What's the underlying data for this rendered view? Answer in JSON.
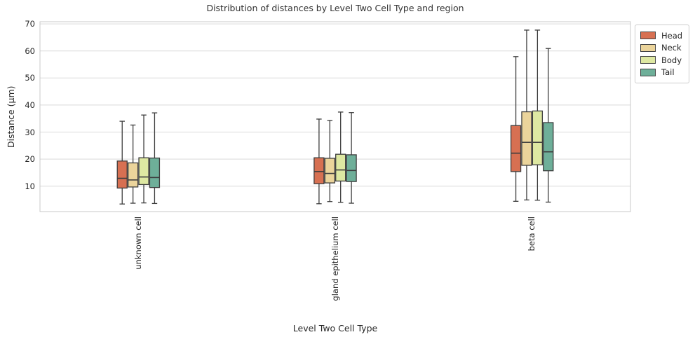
{
  "chart_data": {
    "type": "box",
    "title": "Distribution of distances by Level Two Cell Type and region",
    "xlabel": "Level Two Cell Type",
    "ylabel": "Distance (μm)",
    "categories": [
      "unknown cell",
      "gland epithelium cell",
      "beta cell"
    ],
    "yticks": [
      10,
      20,
      30,
      40,
      50,
      60,
      70
    ],
    "ylim": [
      0.6,
      70.8
    ],
    "grid": true,
    "legend_position": "outside-upper-right",
    "style": {
      "background": "#ffffff",
      "grid_color": "#d9d9d9",
      "spine_color": "#c9c9c9",
      "box_edge_color": "#3d3d3d",
      "text_color": "#262626"
    },
    "series": [
      {
        "name": "Head",
        "color": "#d77052",
        "boxes": [
          {
            "whisker_low": 3.4,
            "q1": 9.3,
            "median": 12.9,
            "q3": 19.3,
            "whisker_high": 34.0
          },
          {
            "whisker_low": 3.5,
            "q1": 10.9,
            "median": 15.4,
            "q3": 20.5,
            "whisker_high": 34.8
          },
          {
            "whisker_low": 4.4,
            "q1": 15.4,
            "median": 22.2,
            "q3": 32.4,
            "whisker_high": 57.9
          }
        ]
      },
      {
        "name": "Neck",
        "color": "#ebd49b",
        "boxes": [
          {
            "whisker_low": 3.7,
            "q1": 9.7,
            "median": 12.3,
            "q3": 18.6,
            "whisker_high": 32.6
          },
          {
            "whisker_low": 4.3,
            "q1": 11.2,
            "median": 14.7,
            "q3": 20.3,
            "whisker_high": 34.3
          },
          {
            "whisker_low": 4.9,
            "q1": 17.7,
            "median": 26.2,
            "q3": 37.5,
            "whisker_high": 67.7
          }
        ]
      },
      {
        "name": "Body",
        "color": "#dee8a2",
        "boxes": [
          {
            "whisker_low": 3.8,
            "q1": 10.6,
            "median": 13.4,
            "q3": 20.5,
            "whisker_high": 36.3
          },
          {
            "whisker_low": 4.0,
            "q1": 11.9,
            "median": 16.0,
            "q3": 21.8,
            "whisker_high": 37.4
          },
          {
            "whisker_low": 4.8,
            "q1": 17.9,
            "median": 26.2,
            "q3": 37.8,
            "whisker_high": 67.7
          }
        ]
      },
      {
        "name": "Tail",
        "color": "#6eaf99",
        "boxes": [
          {
            "whisker_low": 3.6,
            "q1": 9.5,
            "median": 13.2,
            "q3": 20.4,
            "whisker_high": 37.1
          },
          {
            "whisker_low": 3.7,
            "q1": 11.7,
            "median": 15.8,
            "q3": 21.6,
            "whisker_high": 37.2
          },
          {
            "whisker_low": 4.1,
            "q1": 15.7,
            "median": 22.7,
            "q3": 33.5,
            "whisker_high": 60.9
          }
        ]
      }
    ]
  }
}
